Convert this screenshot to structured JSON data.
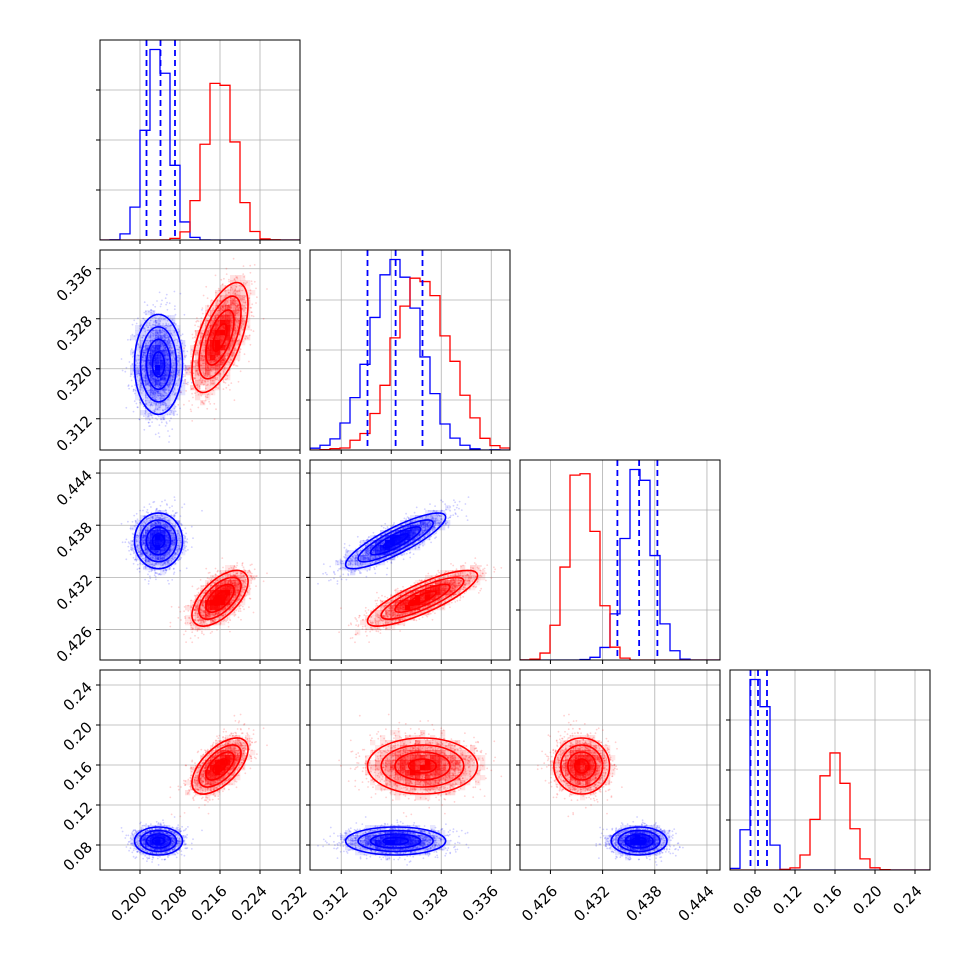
{
  "chart_data": {
    "type": "corner",
    "parameters": [
      {
        "range": [
          0.192,
          0.232
        ],
        "ticks": [
          "0.200",
          "0.208",
          "0.216",
          "0.224",
          "0.232"
        ],
        "tick_values": [
          0.2,
          0.208,
          0.216,
          0.224,
          0.232
        ]
      },
      {
        "range": [
          0.307,
          0.339
        ],
        "ticks": [
          "0.312",
          "0.320",
          "0.328",
          "0.336"
        ],
        "tick_values": [
          0.312,
          0.32,
          0.328,
          0.336
        ]
      },
      {
        "range": [
          0.4225,
          0.4455
        ],
        "ticks": [
          "0.426",
          "0.432",
          "0.438",
          "0.444"
        ],
        "tick_values": [
          0.426,
          0.432,
          0.438,
          0.444
        ]
      },
      {
        "range": [
          0.055,
          0.255
        ],
        "ticks": [
          "0.08",
          "0.12",
          "0.16",
          "0.20",
          "0.24"
        ],
        "tick_values": [
          0.08,
          0.12,
          0.16,
          0.2,
          0.24
        ]
      }
    ],
    "series": [
      {
        "color": "#0000ff",
        "mean": [
          0.2037,
          0.3207,
          0.4362,
          0.084
        ],
        "std": [
          0.0024,
          0.004,
          0.0016,
          0.007
        ],
        "corr": [
          [
            1,
            0,
            0,
            0
          ],
          [
            0,
            1,
            0.85,
            0
          ],
          [
            0,
            0.85,
            1,
            0
          ],
          [
            0,
            0,
            0,
            1
          ]
        ],
        "quantiles_16_50_84": [
          [
            0.2013,
            0.2041,
            0.207
          ],
          [
            0.3162,
            0.3207,
            0.325
          ],
          [
            0.4337,
            0.4362,
            0.4383
          ],
          [
            0.0755,
            0.083,
            0.092
          ]
        ]
      },
      {
        "color": "#ff0000",
        "mean": [
          0.216,
          0.325,
          0.4296,
          0.159
        ],
        "std": [
          0.0028,
          0.0044,
          0.0016,
          0.014
        ],
        "corr": [
          [
            1,
            0.6,
            0.6,
            0.6
          ],
          [
            0.6,
            1,
            0.82,
            0
          ],
          [
            0.6,
            0.82,
            1,
            0
          ],
          [
            0.6,
            0,
            0,
            1
          ]
        ]
      }
    ],
    "title": "",
    "xlabel": "",
    "ylabel": "",
    "grid": true,
    "legend": "none"
  }
}
